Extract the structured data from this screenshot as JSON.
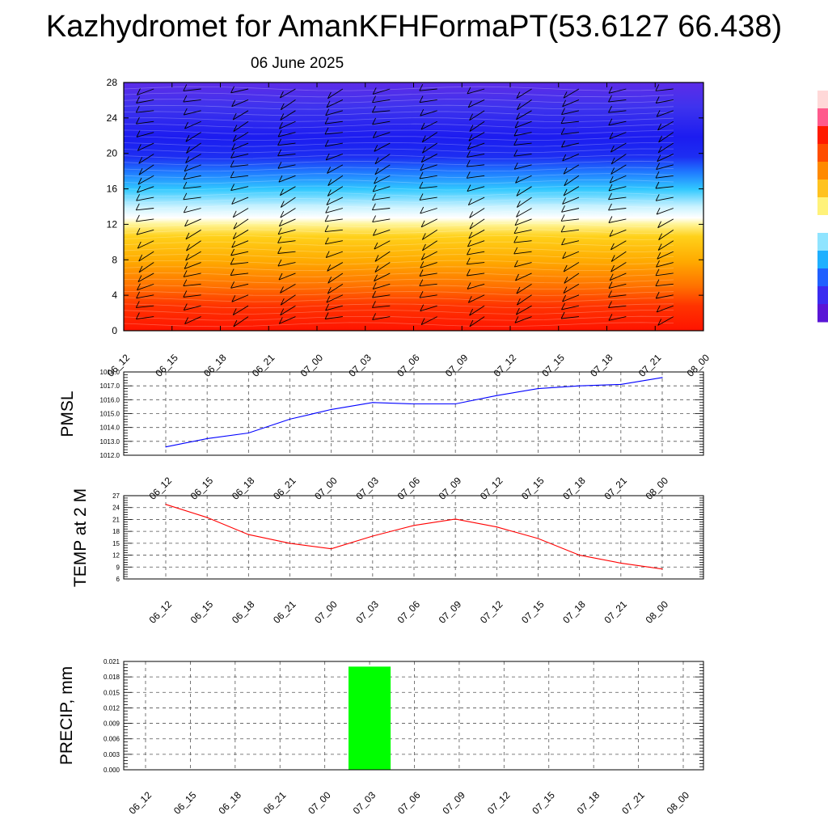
{
  "page": {
    "title": "Kazhydromet for AmanKFHFormaPT(53.6127 66.438)",
    "subtitle": "06 June 2025"
  },
  "chart_data": [
    {
      "type": "heatmap",
      "name": "cross-section",
      "xticks": [
        "06_12",
        "06_15",
        "06_18",
        "06_21",
        "07_00",
        "07_03",
        "07_06",
        "07_09",
        "07_12",
        "07_15",
        "07_18",
        "07_21",
        "08_00"
      ],
      "yticks": [
        "0",
        "4",
        "8",
        "12",
        "16",
        "20",
        "24",
        "28"
      ],
      "ylim": [
        0,
        28
      ],
      "colorbar": [
        "#5a16d6",
        "#3b2cf0",
        "#2060ff",
        "#1fb0ff",
        "#8fe4ff",
        "#ffffff",
        "#fff27a",
        "#ffc21f",
        "#ff8a00",
        "#ff4d00",
        "#ff1a00",
        "#ff5a8c",
        "#ffd8d8"
      ],
      "overlay": "wind barbs"
    },
    {
      "type": "line",
      "name": "pmsl",
      "ylabel": "PMSL",
      "xticks": [
        "06_12",
        "06_15",
        "06_18",
        "06_21",
        "07_00",
        "07_03",
        "07_06",
        "07_09",
        "07_12",
        "07_15",
        "07_18",
        "07_21",
        "08_00"
      ],
      "yticks": [
        "1012.0",
        "1013.0",
        "1014.0",
        "1015.0",
        "1016.0",
        "1017.0",
        "1018.0"
      ],
      "ylim": [
        1012,
        1018
      ],
      "values": [
        1012.6,
        1013.2,
        1013.6,
        1014.6,
        1015.3,
        1015.8,
        1015.7,
        1015.7,
        1016.3,
        1016.8,
        1017.0,
        1017.1,
        1017.6
      ],
      "color": "#0000ff",
      "grid": true
    },
    {
      "type": "line",
      "name": "temp",
      "ylabel": "TEMP at 2 M",
      "xticks": [
        "06_12",
        "06_15",
        "06_18",
        "06_21",
        "07_00",
        "07_03",
        "07_06",
        "07_09",
        "07_12",
        "07_15",
        "07_18",
        "07_21",
        "08_00"
      ],
      "yticks": [
        "6",
        "9",
        "12",
        "15",
        "18",
        "21",
        "24",
        "27"
      ],
      "ylim": [
        6,
        27
      ],
      "values": [
        24.8,
        21.5,
        17.2,
        15.0,
        13.6,
        16.8,
        19.5,
        21.1,
        19.1,
        16.2,
        12.0,
        10.0,
        8.5
      ],
      "color": "#ff0000",
      "grid": true
    },
    {
      "type": "bar",
      "name": "precip",
      "ylabel": "PRECIP, mm",
      "xticks": [
        "06_12",
        "06_15",
        "06_18",
        "06_21",
        "07_00",
        "07_03",
        "07_06",
        "07_09",
        "07_12",
        "07_15",
        "07_18",
        "07_21",
        "08_00"
      ],
      "yticks": [
        "0.000",
        "0.003",
        "0.006",
        "0.009",
        "0.012",
        "0.015",
        "0.018",
        "0.021"
      ],
      "ylim": [
        0,
        0.021
      ],
      "values": [
        0,
        0,
        0,
        0,
        0,
        0.02,
        0,
        0,
        0,
        0,
        0,
        0,
        0
      ],
      "color": "#00ff00",
      "grid": true
    }
  ]
}
